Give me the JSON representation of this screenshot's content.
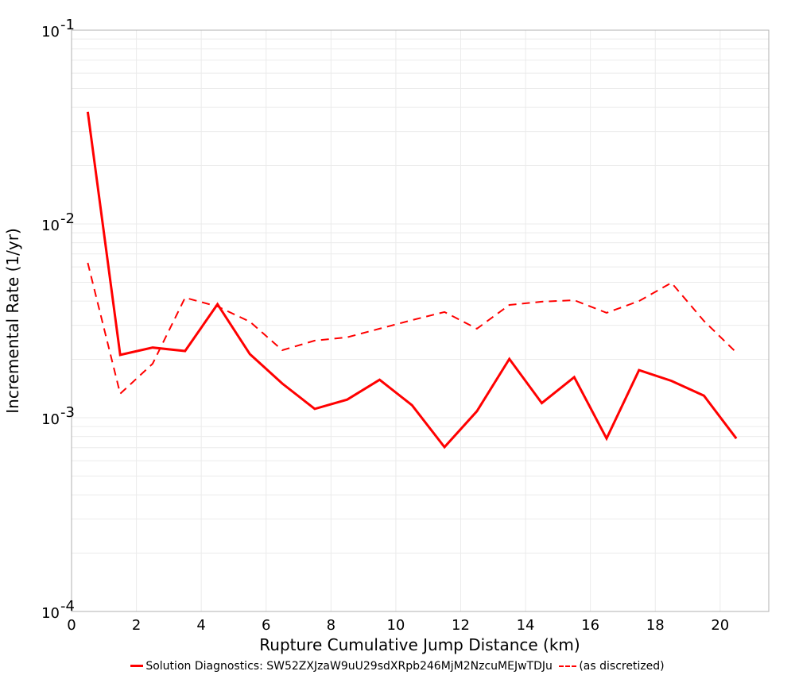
{
  "chart_data": {
    "type": "line",
    "title": "",
    "xlabel": "Rupture Cumulative Jump Distance (km)",
    "ylabel": "Incremental Rate (1/yr)",
    "xlim": [
      0,
      21.5
    ],
    "ylim": [
      0.0001,
      0.1
    ],
    "yscale": "log",
    "grid": true,
    "legend_position": "bottom",
    "x_ticks": [
      0,
      2,
      4,
      6,
      8,
      10,
      12,
      14,
      16,
      18,
      20
    ],
    "y_ticks": [
      {
        "value": 0.1,
        "base": "10",
        "exp": "-1"
      },
      {
        "value": 0.01,
        "base": "10",
        "exp": "-2"
      },
      {
        "value": 0.001,
        "base": "10",
        "exp": "-3"
      },
      {
        "value": 0.0001,
        "base": "10",
        "exp": "-4"
      }
    ],
    "x": [
      0.5,
      1.5,
      2.5,
      3.5,
      4.5,
      5.5,
      6.5,
      7.5,
      8.5,
      9.5,
      10.5,
      11.5,
      12.5,
      13.5,
      14.5,
      15.5,
      16.5,
      17.5,
      18.5,
      19.5,
      20.5
    ],
    "series": [
      {
        "name": "Solution Diagnostics: SW52ZXJzaW9uU29sdXRpb246MjM2NzcuMEJwTDJu",
        "style": "solid",
        "color": "#ff0000",
        "values": [
          0.0379,
          0.00211,
          0.0023,
          0.00221,
          0.00385,
          0.00213,
          0.0015,
          0.00111,
          0.00124,
          0.00157,
          0.00116,
          0.000705,
          0.00108,
          0.00201,
          0.00119,
          0.00162,
          0.000781,
          0.00176,
          0.00155,
          0.0013,
          0.000781
        ]
      },
      {
        "name": "(as discretized)",
        "style": "dashed",
        "color": "#ff0000",
        "values": [
          0.0063,
          0.00133,
          0.0019,
          0.00416,
          0.00375,
          0.00313,
          0.00223,
          0.0025,
          0.0026,
          0.00288,
          0.00319,
          0.00351,
          0.00288,
          0.00382,
          0.00397,
          0.00404,
          0.00348,
          0.004,
          0.00497,
          0.00316,
          0.00217
        ]
      }
    ]
  },
  "legend": {
    "items": [
      {
        "label": "Solution Diagnostics: SW52ZXJzaW9uU29sdXRpb246MjM2NzcuMEJwTDJu"
      },
      {
        "label": "(as discretized)"
      }
    ]
  }
}
